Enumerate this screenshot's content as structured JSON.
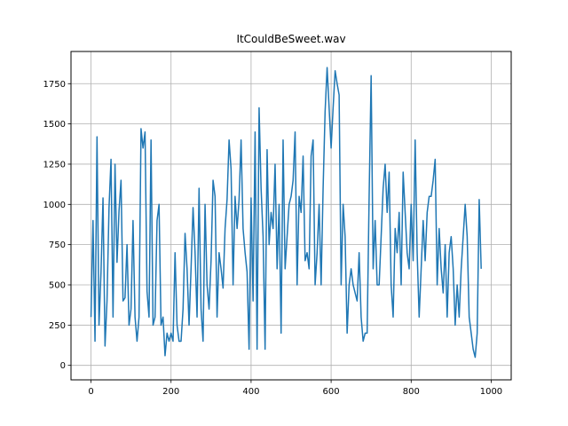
{
  "chart_data": {
    "type": "line",
    "title": "ItCouldBeSweet.wav",
    "xlabel": "",
    "ylabel": "",
    "xlim": [
      -50,
      1050
    ],
    "ylim": [
      -90,
      1950
    ],
    "grid": true,
    "line_color": "#1f77b4",
    "x_ticks": [
      0,
      200,
      400,
      600,
      800,
      1000
    ],
    "x_tick_labels": [
      "0",
      "200",
      "400",
      "600",
      "800",
      "1000"
    ],
    "y_ticks": [
      0,
      250,
      500,
      750,
      1000,
      1250,
      1500,
      1750
    ],
    "y_tick_labels": [
      "0",
      "250",
      "500",
      "750",
      "1000",
      "1250",
      "1500",
      "1750"
    ],
    "series": [
      {
        "x_start": 0,
        "x_step": 5,
        "values": [
          300,
          900,
          150,
          1420,
          250,
          580,
          1040,
          120,
          400,
          980,
          1280,
          300,
          1250,
          640,
          960,
          1150,
          400,
          420,
          750,
          250,
          350,
          900,
          300,
          150,
          300,
          1470,
          1350,
          1450,
          460,
          300,
          1400,
          250,
          300,
          900,
          1000,
          250,
          300,
          60,
          200,
          150,
          200,
          150,
          700,
          250,
          150,
          150,
          350,
          820,
          600,
          250,
          600,
          980,
          700,
          300,
          1100,
          350,
          150,
          1000,
          500,
          350,
          650,
          1150,
          1050,
          300,
          700,
          600,
          480,
          850,
          1030,
          1400,
          1220,
          500,
          1050,
          850,
          1030,
          1400,
          850,
          700,
          580,
          100,
          1040,
          400,
          1450,
          100,
          1600,
          1100,
          800,
          100,
          1340,
          750,
          950,
          850,
          1250,
          600,
          1000,
          200,
          1400,
          600,
          800,
          1000,
          1050,
          1150,
          1450,
          500,
          1050,
          950,
          1300,
          650,
          700,
          600,
          1300,
          1400,
          500,
          700,
          1000,
          500,
          1100,
          1580,
          1850,
          1600,
          1350,
          1600,
          1830,
          1750,
          1680,
          500,
          1000,
          800,
          200,
          500,
          600,
          500,
          450,
          400,
          700,
          300,
          150,
          200,
          200,
          1050,
          1800,
          600,
          900,
          500,
          500,
          800,
          1100,
          1250,
          950,
          1200,
          500,
          300,
          850,
          700,
          950,
          500,
          1200,
          950,
          700,
          600,
          1000,
          650,
          1400,
          700,
          300,
          600,
          900,
          650,
          950,
          1050,
          1050,
          1150,
          1280,
          500,
          850,
          600,
          450,
          750,
          300,
          700,
          800,
          600,
          250,
          500,
          300,
          600,
          800,
          1000,
          800,
          300,
          200,
          100,
          50,
          200,
          1030,
          600
        ]
      }
    ]
  }
}
